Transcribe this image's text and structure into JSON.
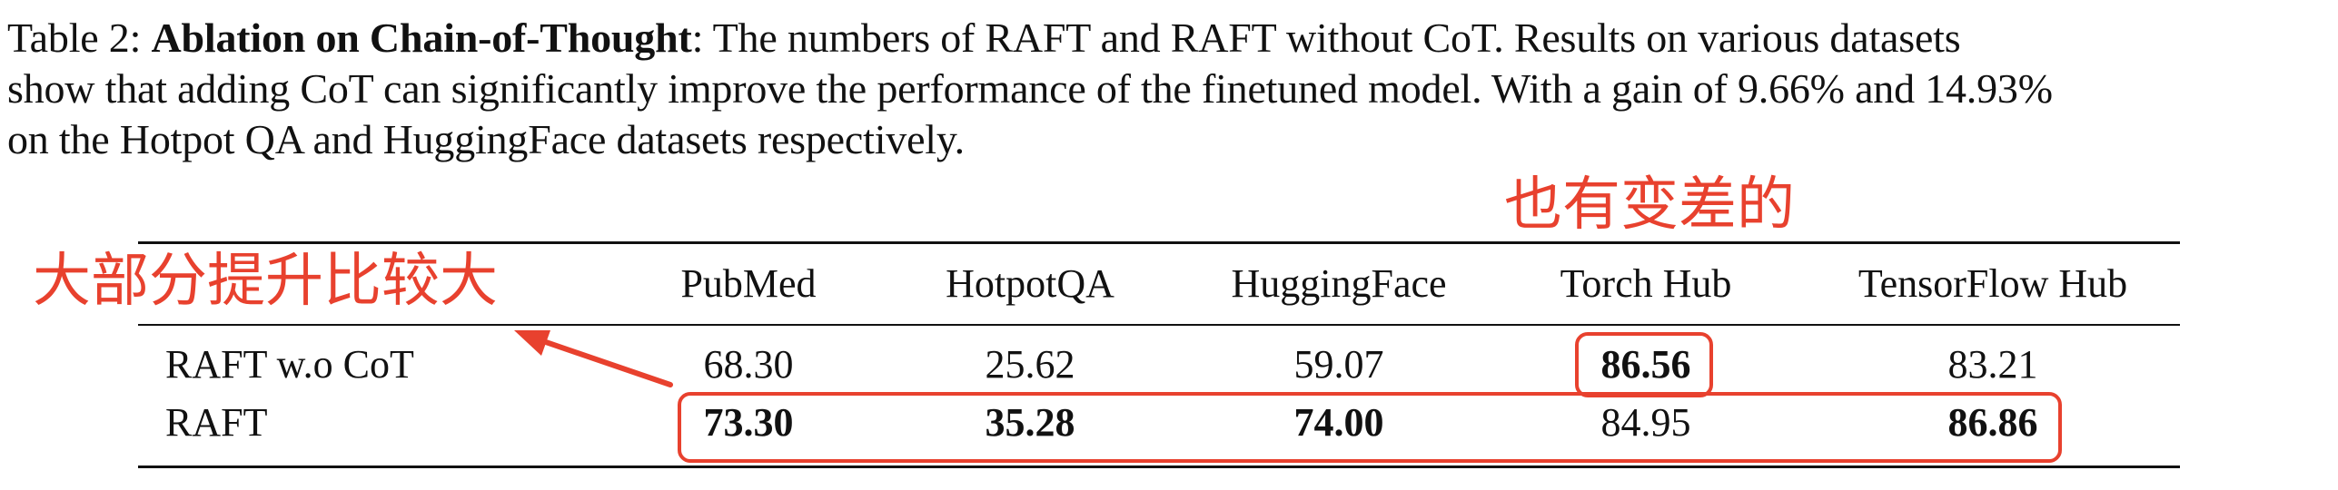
{
  "caption": {
    "line1_prefix": "Table 2: ",
    "line1_bold": "Ablation on Chain-of-Thought",
    "line1_rest": ": The numbers of RAFT  and RAFT  without CoT. Results on various datasets",
    "line2": "show that adding CoT can significantly improve the performance of the finetuned model. With a gain of 9.66% and 14.93%",
    "line3": "on the Hotpot QA and HuggingFace datasets respectively."
  },
  "table": {
    "columns": [
      "PubMed",
      "HotpotQA",
      "HuggingFace",
      "Torch Hub",
      "TensorFlow Hub"
    ],
    "rows": [
      {
        "label": "RAFT w.o CoT",
        "values": [
          "68.30",
          "25.62",
          "59.07",
          "86.56",
          "83.21"
        ]
      },
      {
        "label": "RAFT",
        "values": [
          "73.30",
          "35.28",
          "74.00",
          "84.95",
          "86.86"
        ]
      }
    ]
  },
  "annotations": {
    "left_note": "大部分提升比较大",
    "top_note": "也有变差的",
    "color": "#e8412e"
  }
}
